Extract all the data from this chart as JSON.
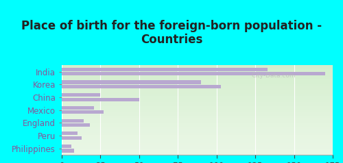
{
  "title": "Place of birth for the foreign-born population -\nCountries",
  "categories": [
    "India",
    "Korea",
    "China",
    "Mexico",
    "England",
    "Peru",
    "Philippines"
  ],
  "values1": [
    170,
    103,
    50,
    27,
    18,
    13,
    8
  ],
  "values2": [
    133,
    90,
    25,
    21,
    14,
    10,
    6
  ],
  "bar_color": "#b8a8d0",
  "background_chart_top": "#d8eec8",
  "background_chart_bottom": "#eef8e8",
  "background_outer": "#00ffff",
  "label_color": "#885599",
  "title_color": "#222222",
  "xlim": [
    0,
    175
  ],
  "xticks": [
    0,
    25,
    50,
    75,
    100,
    125,
    150,
    175
  ],
  "title_fontsize": 12,
  "label_fontsize": 8.5,
  "tick_fontsize": 8.5,
  "bar_height": 0.28,
  "bar_gap": 0.06
}
